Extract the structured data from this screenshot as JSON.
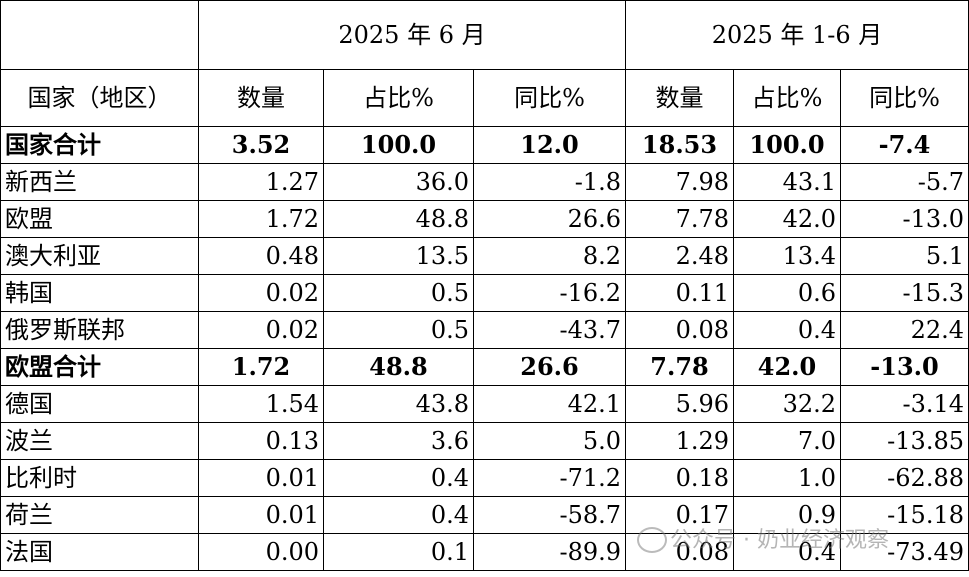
{
  "table": {
    "header": {
      "periods": [
        "2025 年 6 月",
        "2025 年 1-6 月"
      ],
      "columns": [
        "国家（地区）",
        "数量",
        "占比%",
        "同比%",
        "数量",
        "占比%",
        "同比%"
      ]
    },
    "groups": [
      {
        "total": [
          "国家合计",
          "3.52",
          "100.0",
          "12.0",
          "18.53",
          "100.0",
          "-7.4"
        ],
        "rows": [
          [
            "新西兰",
            "1.27",
            "36.0",
            "-1.8",
            "7.98",
            "43.1",
            "-5.7"
          ],
          [
            "欧盟",
            "1.72",
            "48.8",
            "26.6",
            "7.78",
            "42.0",
            "-13.0"
          ],
          [
            "澳大利亚",
            "0.48",
            "13.5",
            "8.2",
            "2.48",
            "13.4",
            "5.1"
          ],
          [
            "韩国",
            "0.02",
            "0.5",
            "-16.2",
            "0.11",
            "0.6",
            "-15.3"
          ],
          [
            "俄罗斯联邦",
            "0.02",
            "0.5",
            "-43.7",
            "0.08",
            "0.4",
            "22.4"
          ]
        ]
      },
      {
        "total": [
          "欧盟合计",
          "1.72",
          "48.8",
          "26.6",
          "7.78",
          "42.0",
          "-13.0"
        ],
        "rows": [
          [
            "德国",
            "1.54",
            "43.8",
            "42.1",
            "5.96",
            "32.2",
            "-3.14"
          ],
          [
            "波兰",
            "0.13",
            "3.6",
            "5.0",
            "1.29",
            "7.0",
            "-13.85"
          ],
          [
            "比利时",
            "0.01",
            "0.4",
            "-71.2",
            "0.18",
            "1.0",
            "-62.88"
          ],
          [
            "荷兰",
            "0.01",
            "0.4",
            "-58.7",
            "0.17",
            "0.9",
            "-15.18"
          ],
          [
            "法国",
            "0.00",
            "0.1",
            "-89.9",
            "0.08",
            "0.4",
            "-73.49"
          ]
        ]
      }
    ]
  },
  "watermark": "公众号 · 奶业经济观察"
}
